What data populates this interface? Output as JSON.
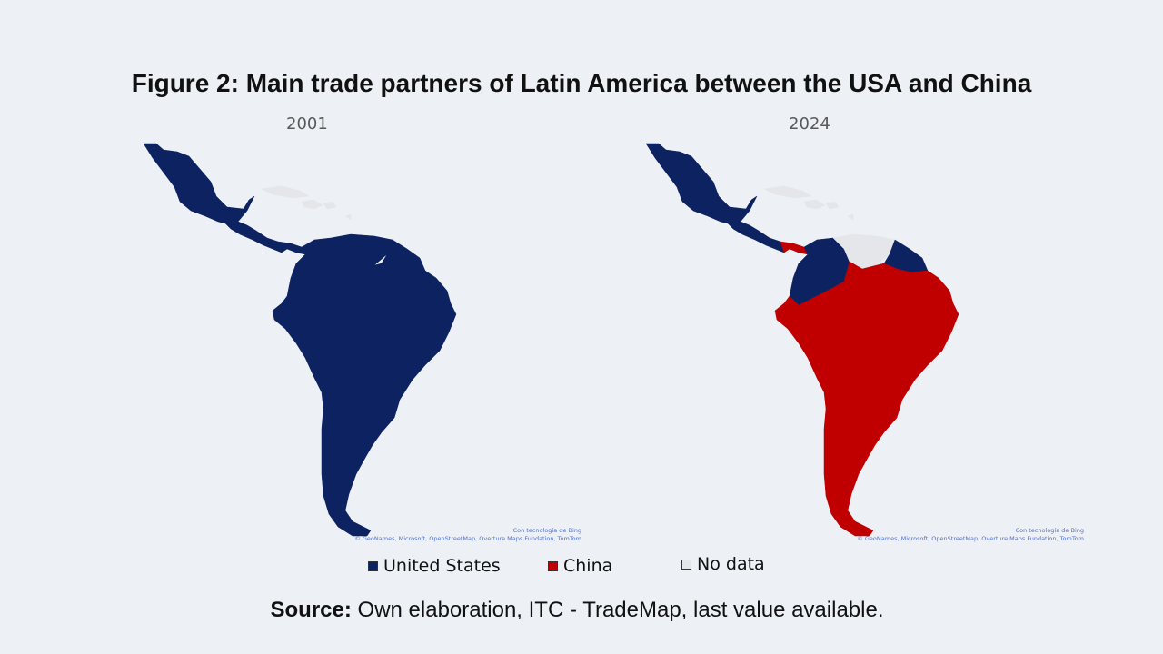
{
  "title": "Figure 2: Main trade partners of Latin America between the USA and China",
  "maps": [
    {
      "year": "2001",
      "regions": {
        "mexico": "United States",
        "central_america": "United States",
        "caribbean": "No data",
        "colombia": "United States",
        "venezuela": "United States",
        "guianas": "United States",
        "south_america_rest": "United States"
      },
      "credit_line1": "Con tecnología de Bing",
      "credit_line2": "© GeoNames, Microsoft, OpenStreetMap, Overture Maps Fundation, TomTom"
    },
    {
      "year": "2024",
      "regions": {
        "mexico": "United States",
        "central_america": "United States",
        "panama": "China",
        "caribbean": "No data",
        "colombia": "United States",
        "venezuela": "No data",
        "guianas": "United States",
        "south_america_rest": "China"
      },
      "credit_line1": "Con tecnología de Bing",
      "credit_line2": "© GeoNames, Microsoft, OpenStreetMap, Overture Maps Fundation, TomTom"
    }
  ],
  "legend": [
    {
      "label": "United States",
      "color": "#0d2260"
    },
    {
      "label": "China",
      "color": "#c00000"
    },
    {
      "label": "No data",
      "color": "#e4e6e9"
    }
  ],
  "source": {
    "label": "Source:",
    "text": " Own elaboration, ITC - TradeMap, last value available."
  }
}
